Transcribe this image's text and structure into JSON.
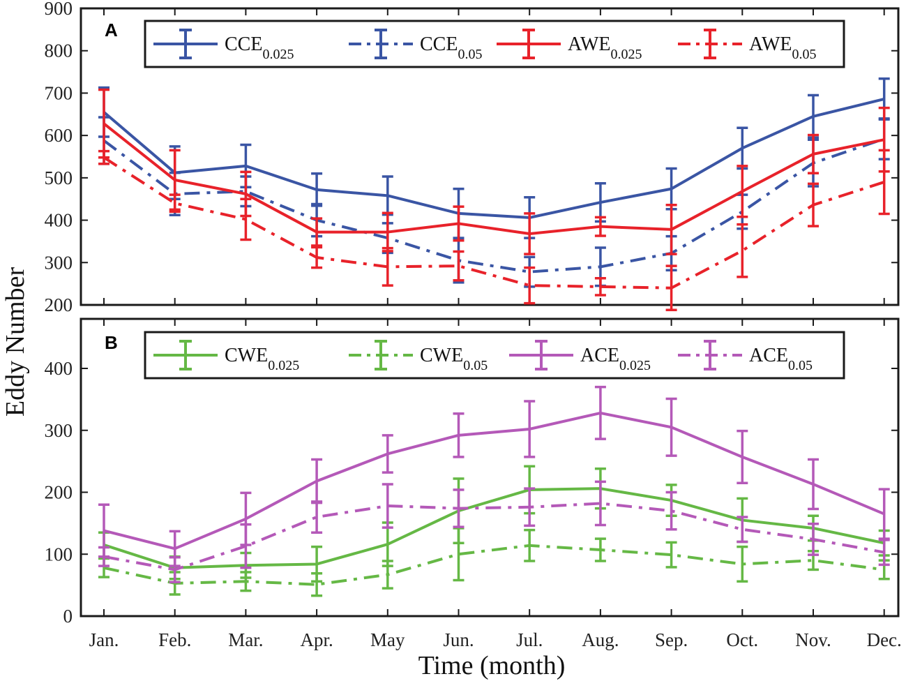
{
  "figure": {
    "xlabel": "Time (month)",
    "ylabel": "Eddy Number"
  },
  "chart_data": [
    {
      "type": "line",
      "panel_label": "A",
      "categories": [
        "Jan.",
        "Feb.",
        "Mar.",
        "Apr.",
        "May",
        "Jun.",
        "Jul.",
        "Aug.",
        "Sep.",
        "Oct.",
        "Nov.",
        "Dec."
      ],
      "ylim": [
        200,
        900
      ],
      "yticks": [
        200,
        300,
        400,
        500,
        600,
        700,
        800,
        900
      ],
      "legend_position": "top",
      "series": [
        {
          "name": "CCE",
          "subscript": "0.025",
          "color": "#3a55a4",
          "style": "solid",
          "values": [
            655,
            512,
            528,
            472,
            458,
            416,
            406,
            442,
            474,
            570,
            645,
            686
          ],
          "errors": [
            58,
            62,
            50,
            38,
            45,
            58,
            48,
            45,
            48,
            48,
            50,
            48
          ]
        },
        {
          "name": "CCE",
          "subscript": "0.05",
          "color": "#3a55a4",
          "style": "dashdot",
          "values": [
            588,
            462,
            468,
            400,
            358,
            305,
            278,
            290,
            322,
            420,
            535,
            592
          ],
          "errors": [
            55,
            50,
            35,
            38,
            35,
            52,
            35,
            45,
            40,
            40,
            55,
            48
          ]
        },
        {
          "name": "AWE",
          "subscript": "0.025",
          "color": "#e8222a",
          "style": "solid",
          "values": [
            628,
            495,
            462,
            372,
            372,
            392,
            368,
            385,
            378,
            468,
            556,
            590
          ],
          "errors": [
            80,
            70,
            52,
            32,
            45,
            40,
            48,
            22,
            58,
            60,
            45,
            75
          ]
        },
        {
          "name": "AWE",
          "subscript": "0.05",
          "color": "#e8222a",
          "style": "dashdot",
          "values": [
            548,
            440,
            402,
            312,
            290,
            292,
            246,
            243,
            240,
            328,
            436,
            490
          ],
          "errors": [
            15,
            20,
            48,
            24,
            44,
            34,
            42,
            20,
            52,
            62,
            50,
            75
          ]
        }
      ]
    },
    {
      "type": "line",
      "panel_label": "B",
      "categories": [
        "Jan.",
        "Feb.",
        "Mar.",
        "Apr.",
        "May",
        "Jun.",
        "Jul.",
        "Aug.",
        "Sep.",
        "Oct.",
        "Nov.",
        "Dec."
      ],
      "ylim": [
        0,
        480
      ],
      "yticks": [
        0,
        100,
        200,
        300,
        400
      ],
      "legend_position": "top",
      "series": [
        {
          "name": "CWE",
          "subscript": "0.025",
          "color": "#65b845",
          "style": "solid",
          "values": [
            115,
            78,
            82,
            84,
            116,
            170,
            204,
            206,
            187,
            155,
            142,
            118
          ],
          "errors": [
            20,
            18,
            20,
            28,
            35,
            52,
            38,
            32,
            25,
            35,
            20,
            20
          ]
        },
        {
          "name": "CWE",
          "subscript": "0.05",
          "color": "#65b845",
          "style": "dashdot",
          "values": [
            78,
            53,
            56,
            51,
            67,
            100,
            114,
            107,
            99,
            84,
            90,
            75
          ],
          "errors": [
            15,
            18,
            15,
            18,
            22,
            42,
            25,
            18,
            20,
            28,
            15,
            15
          ]
        },
        {
          "name": "ACE",
          "subscript": "0.025",
          "color": "#b459b8",
          "style": "solid",
          "values": [
            138,
            109,
            157,
            218,
            262,
            292,
            302,
            328,
            305,
            257,
            213,
            165
          ],
          "errors": [
            42,
            28,
            42,
            35,
            30,
            35,
            45,
            42,
            46,
            42,
            40,
            40
          ]
        },
        {
          "name": "ACE",
          "subscript": "0.05",
          "color": "#b459b8",
          "style": "dashdot",
          "values": [
            96,
            75,
            113,
            160,
            178,
            174,
            176,
            182,
            170,
            140,
            124,
            103
          ],
          "errors": [
            15,
            20,
            35,
            25,
            35,
            30,
            30,
            35,
            30,
            20,
            25,
            20
          ]
        }
      ]
    }
  ]
}
